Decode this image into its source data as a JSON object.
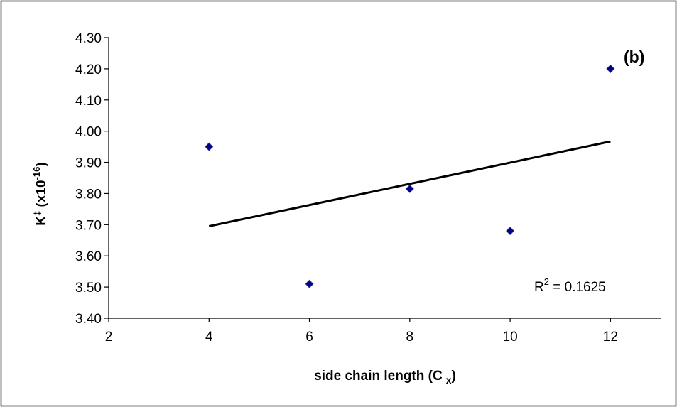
{
  "chart_data": {
    "type": "scatter",
    "panel_label": "(b)",
    "xlabel": {
      "main": "side chain length (C",
      "sub": "x",
      "close": ")"
    },
    "ylabel": {
      "main": "K",
      "dagger": "‡",
      "mid": " (x10",
      "exp": "-16",
      "close": ")"
    },
    "xlim": [
      2,
      13
    ],
    "ylim": [
      3.4,
      4.3
    ],
    "xticks": [
      "2",
      "4",
      "6",
      "8",
      "10",
      "12"
    ],
    "yticks": [
      "3.40",
      "3.50",
      "3.60",
      "3.70",
      "3.80",
      "3.90",
      "4.00",
      "4.10",
      "4.20",
      "4.30"
    ],
    "grid": false,
    "points": [
      {
        "x": 4,
        "y": 3.95
      },
      {
        "x": 6,
        "y": 3.51
      },
      {
        "x": 8,
        "y": 3.815
      },
      {
        "x": 10,
        "y": 3.68
      },
      {
        "x": 12,
        "y": 4.2
      }
    ],
    "trendline": {
      "x": [
        4,
        12
      ],
      "y": [
        3.695,
        3.967
      ]
    },
    "r_squared": {
      "prefix": "R",
      "sup": "2",
      "value": " = 0.1625"
    },
    "colors": {
      "marker": "#00008B",
      "line": "#000000",
      "axis": "#000000"
    }
  }
}
